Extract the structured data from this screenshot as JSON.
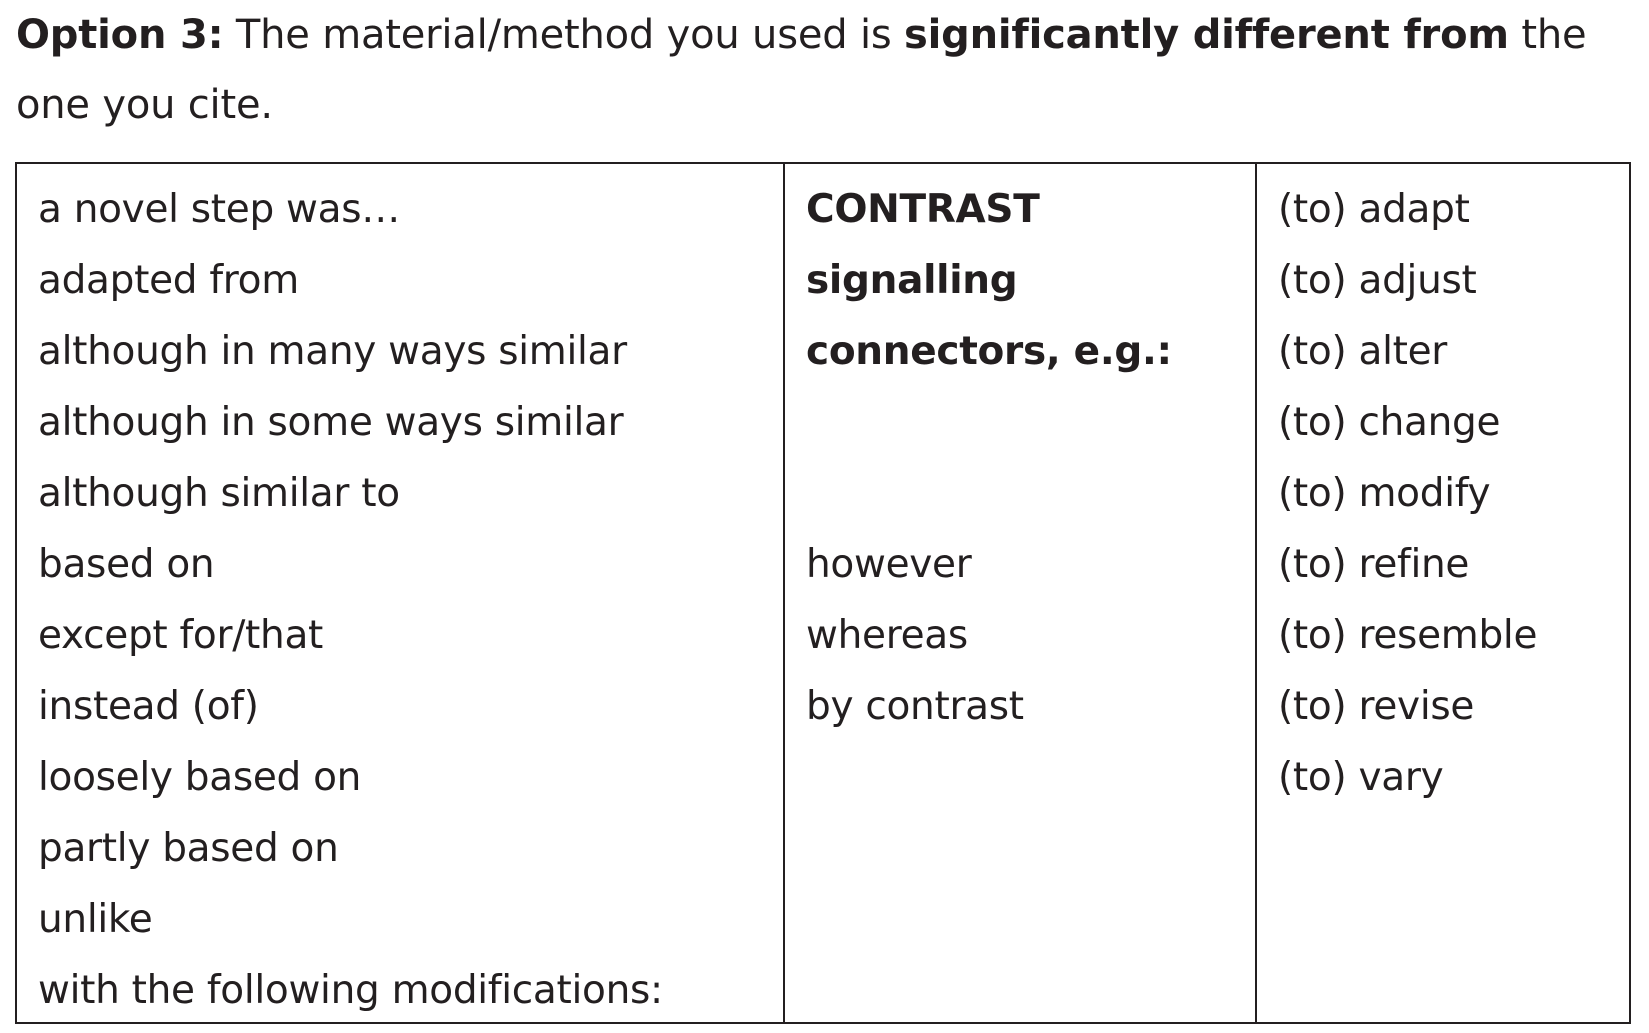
{
  "heading": {
    "label": "Option 3:",
    "text1": " The material/method you used is ",
    "emphasis": "significantly different from",
    "text2": " the one you cite."
  },
  "table": {
    "col1": [
      "a novel step was…",
      "adapted from",
      "although in many ways similar",
      "although in some ways similar",
      "although similar to",
      "based on",
      "except for/that",
      "instead (of)",
      "loosely based on",
      "partly based on",
      "unlike",
      "with the following modifications:"
    ],
    "col2": {
      "header": [
        "CONTRAST",
        "signalling",
        "connectors, e.g.:"
      ],
      "items": [
        "however",
        "whereas",
        "by contrast"
      ]
    },
    "col3": [
      "(to) adapt",
      "(to) adjust",
      "(to) alter",
      "(to) change",
      "(to) modify",
      "(to) refine",
      "(to) resemble",
      "(to) revise",
      "(to) vary"
    ]
  }
}
